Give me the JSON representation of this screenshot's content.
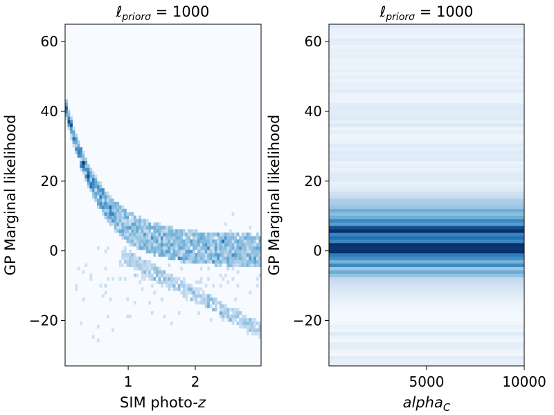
{
  "chart_data": [
    {
      "type": "heatmap",
      "title": "ℓ_{priorσ} = 1000",
      "title_parts": {
        "base": "ℓ",
        "sub": "priorσ",
        "rest": " = 1000"
      },
      "xlabel": "SIM photo-z",
      "xlabel_parts": {
        "text": "SIM photo-",
        "italic": "z"
      },
      "ylabel": "GP Marginal likelihood",
      "xlim": [
        0.06,
        2.98
      ],
      "ylim": [
        -33,
        65
      ],
      "xticks": [
        1,
        2
      ],
      "xtick_labels": [
        "1",
        "2"
      ],
      "yticks": [
        -20,
        0,
        20,
        40,
        60
      ],
      "ytick_labels": [
        "−20",
        "0",
        "20",
        "40",
        "60"
      ],
      "colormap": "Blues",
      "bins_x": 80,
      "bins_y": 100,
      "description_of_trend": "y ≈ 42·exp(-1.9·(x-0.06)) band, with lower branch from (1.0,0) to (2.95,-22) and scatter",
      "peak_points": [
        [
          0.2,
          27
        ],
        [
          0.45,
          16
        ],
        [
          0.6,
          10
        ],
        [
          1.0,
          3
        ],
        [
          1.5,
          0
        ],
        [
          2.0,
          -3
        ],
        [
          2.9,
          -5
        ]
      ]
    },
    {
      "type": "heatmap",
      "title": "ℓ_{priorσ} = 1000",
      "title_parts": {
        "base": "ℓ",
        "sub": "priorσ",
        "rest": " = 1000"
      },
      "xlabel": "alpha_C",
      "xlabel_parts": {
        "base": "alpha",
        "sub": "C"
      },
      "ylabel": "GP Marginal likelihood",
      "xlim": [
        0,
        10000
      ],
      "ylim": [
        -33,
        65
      ],
      "xticks": [
        5000,
        10000
      ],
      "xtick_labels": [
        "5000",
        "10000"
      ],
      "yticks": [
        -20,
        0,
        20,
        40,
        60
      ],
      "ytick_labels": [
        "−20",
        "0",
        "20",
        "40",
        "60"
      ],
      "colormap": "Blues",
      "bins_y": 100,
      "row_intensity_peak_y": 3,
      "description_of_trend": "horizontal bands uniform across alpha_C, darkest near y≈3, spread roughly -15 to 12"
    }
  ],
  "colors": {
    "cmap_low": "#f7fbff",
    "cmap_high": "#08306b"
  }
}
